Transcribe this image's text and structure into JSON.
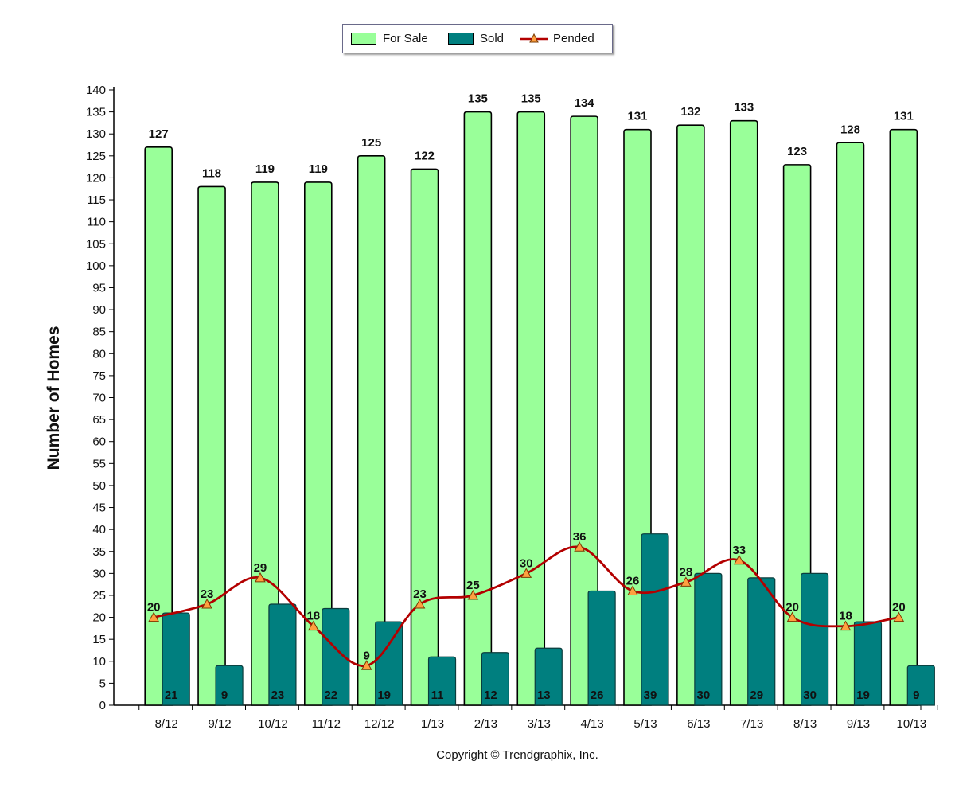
{
  "chart_data": {
    "type": "bar",
    "categories": [
      "8/12",
      "9/12",
      "10/12",
      "11/12",
      "12/12",
      "1/13",
      "2/13",
      "3/13",
      "4/13",
      "5/13",
      "6/13",
      "7/13",
      "8/13",
      "9/13",
      "10/13"
    ],
    "series": [
      {
        "name": "For Sale",
        "type": "bar",
        "color": "#99ff99",
        "values": [
          127,
          118,
          119,
          119,
          125,
          122,
          135,
          135,
          134,
          131,
          132,
          133,
          123,
          128,
          131
        ]
      },
      {
        "name": "Sold",
        "type": "bar",
        "color": "#007f7f",
        "values": [
          21,
          9,
          23,
          22,
          19,
          11,
          12,
          13,
          26,
          39,
          30,
          29,
          30,
          19,
          9
        ]
      },
      {
        "name": "Pended",
        "type": "line",
        "color": "#b30000",
        "marker_color": "#ffa040",
        "values": [
          20,
          23,
          29,
          18,
          9,
          23,
          25,
          30,
          36,
          26,
          28,
          33,
          20,
          18,
          20
        ]
      }
    ],
    "ylabel": "Number of Homes",
    "xlabel": "",
    "ylim": [
      0,
      140
    ],
    "ytick_step": 5,
    "legend_position": "top-center",
    "grid": false
  },
  "legend": {
    "for_sale": "For Sale",
    "sold": "Sold",
    "pended": "Pended"
  },
  "footer": {
    "copyright": "Copyright © Trendgraphix, Inc."
  }
}
